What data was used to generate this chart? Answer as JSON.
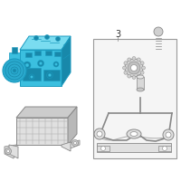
{
  "bg_color": "#ffffff",
  "hyd_color": "#3bbfdf",
  "hyd_edge": "#1a9abf",
  "hyd_dark": "#1888aa",
  "hyd_light": "#7adcf0",
  "gray_line": "#888888",
  "gray_fill": "#cccccc",
  "gray_light": "#e0e0e0",
  "gray_dark": "#999999",
  "label_color": "#444444",
  "fig_width": 2.0,
  "fig_height": 2.0,
  "dpi": 100
}
